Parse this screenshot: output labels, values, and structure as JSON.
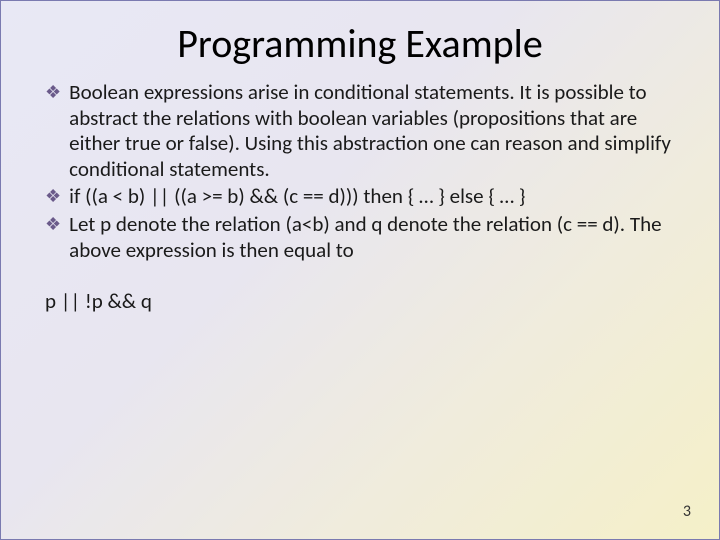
{
  "slide": {
    "title": "Programming Example",
    "bullets": [
      "Boolean expressions arise in conditional statements.  It is possible to abstract the relations with boolean variables (propositions that are either true or false).  Using this abstraction one can reason and simplify conditional statements.",
      "if ((a < b) || ((a >= b) && (c == d))) then { … } else { … }",
      "Let p denote the relation (a<b) and q denote the relation (c == d).  The above expression is then equal to"
    ],
    "plain_line": "p || !p && q",
    "page_number": "3"
  },
  "style": {
    "background_gradient_start": "#e8e8f5",
    "background_gradient_end": "#f5f0c8",
    "border_color": "#7a7ab0",
    "bullet_color": "#6a5a8a",
    "title_fontsize": 40,
    "body_fontsize": 21,
    "pagenum_fontsize": 16
  }
}
